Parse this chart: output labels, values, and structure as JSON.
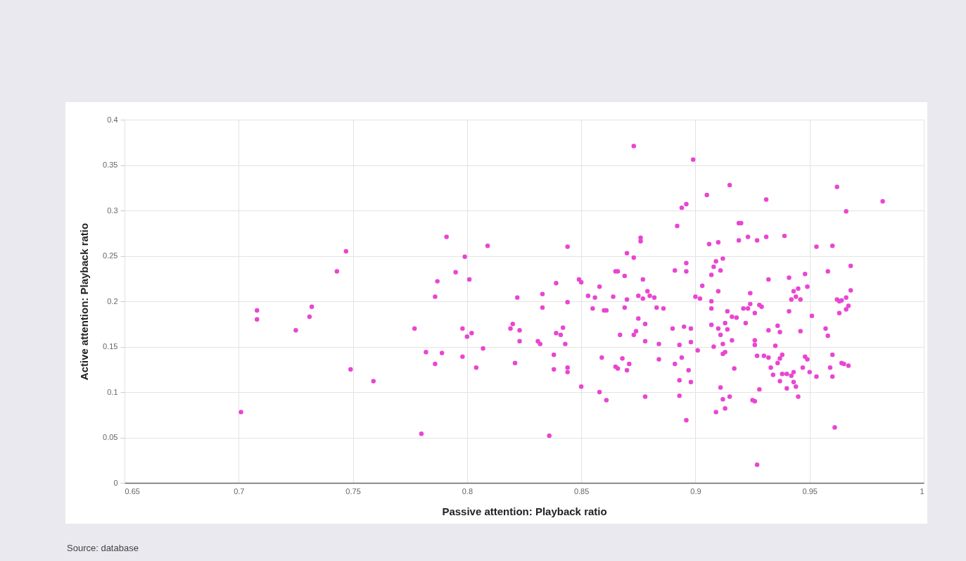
{
  "chart_data": {
    "type": "scatter",
    "xlabel": "Passive attention: Playback ratio",
    "ylabel": "Active attention: Playback ratio",
    "annotations": [
      "Source: database"
    ],
    "xlim": [
      0.65,
      1
    ],
    "xticks": [
      0.65,
      0.7,
      0.75,
      0.8,
      0.85,
      0.9,
      0.95,
      1
    ],
    "ylim": [
      0,
      0.4
    ],
    "yticks": [
      0,
      0.05,
      0.1,
      0.15,
      0.2,
      0.25,
      0.3,
      0.35,
      0.4
    ],
    "grid": true,
    "marker": "circle",
    "series": [
      {
        "color": "#ea45d2",
        "x": [
          0.701,
          0.708,
          0.708,
          0.725,
          0.731,
          0.732,
          0.743,
          0.747,
          0.749,
          0.759,
          0.777,
          0.78,
          0.782,
          0.786,
          0.786,
          0.787,
          0.789,
          0.791,
          0.795,
          0.798,
          0.798,
          0.799,
          0.8,
          0.801,
          0.802,
          0.804,
          0.807,
          0.809,
          0.819,
          0.82,
          0.821,
          0.822,
          0.823,
          0.823,
          0.831,
          0.832,
          0.833,
          0.833,
          0.836,
          0.838,
          0.838,
          0.839,
          0.839,
          0.841,
          0.842,
          0.843,
          0.844,
          0.844,
          0.844,
          0.844,
          0.849,
          0.85,
          0.85,
          0.853,
          0.855,
          0.856,
          0.858,
          0.858,
          0.859,
          0.86,
          0.861,
          0.861,
          0.864,
          0.865,
          0.865,
          0.866,
          0.866,
          0.867,
          0.868,
          0.869,
          0.869,
          0.87,
          0.87,
          0.87,
          0.871,
          0.873,
          0.873,
          0.873,
          0.874,
          0.875,
          0.875,
          0.876,
          0.876,
          0.877,
          0.877,
          0.878,
          0.878,
          0.878,
          0.879,
          0.88,
          0.882,
          0.883,
          0.884,
          0.884,
          0.886,
          0.891,
          0.892,
          0.89,
          0.891,
          0.893,
          0.893,
          0.893,
          0.894,
          0.894,
          0.895,
          0.896,
          0.896,
          0.896,
          0.896,
          0.897,
          0.898,
          0.898,
          0.898,
          0.899,
          0.9,
          0.901,
          0.902,
          0.903,
          0.905,
          0.906,
          0.907,
          0.907,
          0.907,
          0.907,
          0.908,
          0.908,
          0.909,
          0.909,
          0.91,
          0.91,
          0.91,
          0.911,
          0.911,
          0.911,
          0.912,
          0.912,
          0.912,
          0.912,
          0.913,
          0.913,
          0.913,
          0.914,
          0.914,
          0.915,
          0.915,
          0.916,
          0.916,
          0.917,
          0.918,
          0.919,
          0.919,
          0.92,
          0.921,
          0.922,
          0.923,
          0.923,
          0.924,
          0.924,
          0.925,
          0.926,
          0.926,
          0.926,
          0.926,
          0.927,
          0.927,
          0.927,
          0.928,
          0.928,
          0.929,
          0.93,
          0.931,
          0.931,
          0.932,
          0.932,
          0.932,
          0.933,
          0.934,
          0.935,
          0.936,
          0.936,
          0.937,
          0.937,
          0.937,
          0.938,
          0.938,
          0.939,
          0.94,
          0.94,
          0.941,
          0.941,
          0.942,
          0.942,
          0.943,
          0.943,
          0.943,
          0.944,
          0.944,
          0.945,
          0.945,
          0.946,
          0.946,
          0.947,
          0.948,
          0.948,
          0.949,
          0.949,
          0.95,
          0.951,
          0.953,
          0.953,
          0.957,
          0.958,
          0.958,
          0.959,
          0.96,
          0.96,
          0.96,
          0.961,
          0.962,
          0.962,
          0.963,
          0.963,
          0.964,
          0.964,
          0.965,
          0.966,
          0.966,
          0.966,
          0.967,
          0.967,
          0.968,
          0.968,
          0.982
        ],
        "values": [
          0.078,
          0.19,
          0.18,
          0.168,
          0.183,
          0.194,
          0.233,
          0.255,
          0.125,
          0.112,
          0.17,
          0.054,
          0.144,
          0.131,
          0.205,
          0.222,
          0.143,
          0.271,
          0.232,
          0.17,
          0.139,
          0.249,
          0.161,
          0.224,
          0.165,
          0.127,
          0.148,
          0.261,
          0.17,
          0.175,
          0.132,
          0.204,
          0.168,
          0.156,
          0.156,
          0.153,
          0.208,
          0.193,
          0.052,
          0.125,
          0.141,
          0.22,
          0.165,
          0.163,
          0.171,
          0.153,
          0.199,
          0.127,
          0.122,
          0.26,
          0.224,
          0.106,
          0.221,
          0.206,
          0.192,
          0.204,
          0.1,
          0.216,
          0.138,
          0.19,
          0.091,
          0.19,
          0.205,
          0.128,
          0.233,
          0.233,
          0.126,
          0.163,
          0.137,
          0.228,
          0.193,
          0.202,
          0.124,
          0.253,
          0.131,
          0.371,
          0.248,
          0.163,
          0.167,
          0.206,
          0.181,
          0.266,
          0.27,
          0.224,
          0.203,
          0.175,
          0.095,
          0.156,
          0.211,
          0.206,
          0.204,
          0.193,
          0.136,
          0.153,
          0.192,
          0.234,
          0.283,
          0.17,
          0.131,
          0.096,
          0.113,
          0.152,
          0.303,
          0.138,
          0.172,
          0.307,
          0.242,
          0.233,
          0.069,
          0.124,
          0.17,
          0.111,
          0.155,
          0.356,
          0.205,
          0.146,
          0.203,
          0.217,
          0.317,
          0.263,
          0.229,
          0.2,
          0.174,
          0.192,
          0.238,
          0.15,
          0.244,
          0.078,
          0.265,
          0.211,
          0.17,
          0.163,
          0.234,
          0.105,
          0.153,
          0.092,
          0.142,
          0.247,
          0.176,
          0.082,
          0.144,
          0.169,
          0.189,
          0.095,
          0.328,
          0.157,
          0.183,
          0.126,
          0.182,
          0.267,
          0.286,
          0.286,
          0.192,
          0.176,
          0.271,
          0.192,
          0.209,
          0.197,
          0.091,
          0.09,
          0.187,
          0.152,
          0.157,
          0.02,
          0.14,
          0.267,
          0.103,
          0.196,
          0.194,
          0.14,
          0.312,
          0.271,
          0.224,
          0.168,
          0.138,
          0.127,
          0.119,
          0.151,
          0.173,
          0.132,
          0.112,
          0.137,
          0.166,
          0.141,
          0.12,
          0.272,
          0.104,
          0.12,
          0.189,
          0.226,
          0.118,
          0.202,
          0.122,
          0.111,
          0.211,
          0.205,
          0.106,
          0.214,
          0.095,
          0.202,
          0.167,
          0.127,
          0.23,
          0.139,
          0.216,
          0.136,
          0.122,
          0.184,
          0.26,
          0.117,
          0.17,
          0.233,
          0.162,
          0.127,
          0.261,
          0.141,
          0.117,
          0.061,
          0.326,
          0.202,
          0.187,
          0.2,
          0.132,
          0.201,
          0.131,
          0.204,
          0.299,
          0.191,
          0.195,
          0.129,
          0.239,
          0.212,
          0.31
        ]
      }
    ]
  }
}
